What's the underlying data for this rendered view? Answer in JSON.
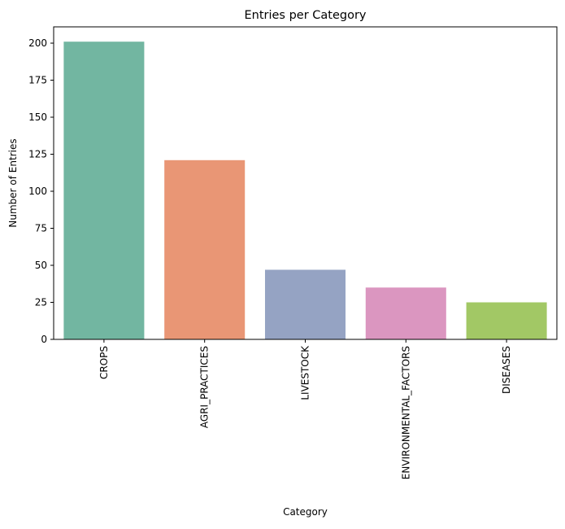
{
  "chart_data": {
    "type": "bar",
    "title": "Entries per Category",
    "xlabel": "Category",
    "ylabel": "Number of Entries",
    "categories": [
      "CROPS",
      "AGRI_PRACTICES",
      "LIVESTOCK",
      "ENVIRONMENTAL_FACTORS",
      "DISEASES"
    ],
    "values": [
      201,
      121,
      47,
      35,
      25
    ],
    "colors": [
      "#72b6a1",
      "#e99675",
      "#95a3c3",
      "#db96c0",
      "#a2c865"
    ],
    "ylim": [
      0,
      211
    ],
    "yticks": [
      0,
      25,
      50,
      75,
      100,
      125,
      150,
      175,
      200
    ],
    "grid": false,
    "legend": "none"
  }
}
